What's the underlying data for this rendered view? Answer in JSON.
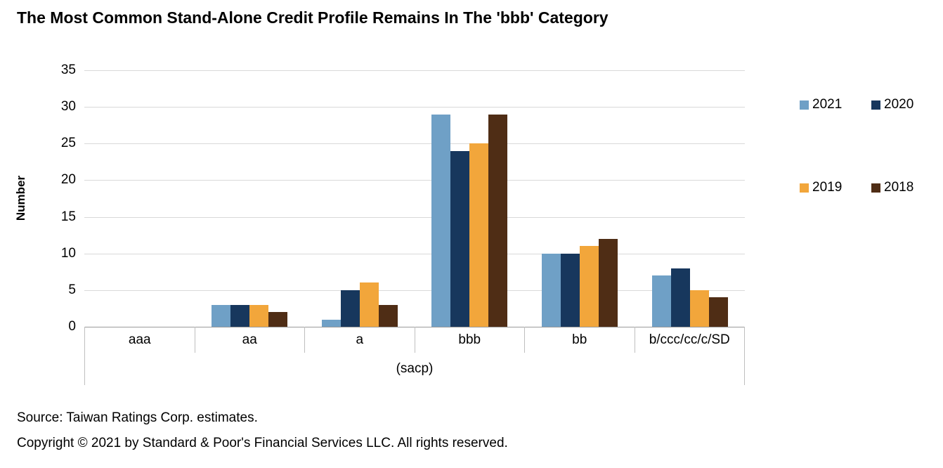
{
  "title": "The Most Common Stand-Alone Credit Profile Remains In The 'bbb' Category",
  "chart_data": {
    "type": "bar",
    "categories": [
      "aaa",
      "aa",
      "a",
      "bbb",
      "bb",
      "b/ccc/cc/c/SD"
    ],
    "series": [
      {
        "name": "2021",
        "color": "#6FA0C6",
        "values": [
          0,
          3,
          1,
          29,
          10,
          7
        ]
      },
      {
        "name": "2020",
        "color": "#17375D",
        "values": [
          0,
          3,
          5,
          24,
          10,
          8
        ]
      },
      {
        "name": "2019",
        "color": "#F2A63B",
        "values": [
          0,
          3,
          6,
          25,
          11,
          5
        ]
      },
      {
        "name": "2018",
        "color": "#4F2D15",
        "values": [
          0,
          2,
          3,
          29,
          12,
          4
        ]
      }
    ],
    "ylabel": "Number",
    "xlabel": "(sacp)",
    "ylim": [
      0,
      35
    ],
    "ytick_step": 5,
    "grid": true,
    "legend_position": "right"
  },
  "footer": {
    "source": "Source: Taiwan Ratings Corp. estimates.",
    "copyright": "Copyright © 2021 by Standard & Poor's Financial Services LLC. All rights reserved."
  }
}
